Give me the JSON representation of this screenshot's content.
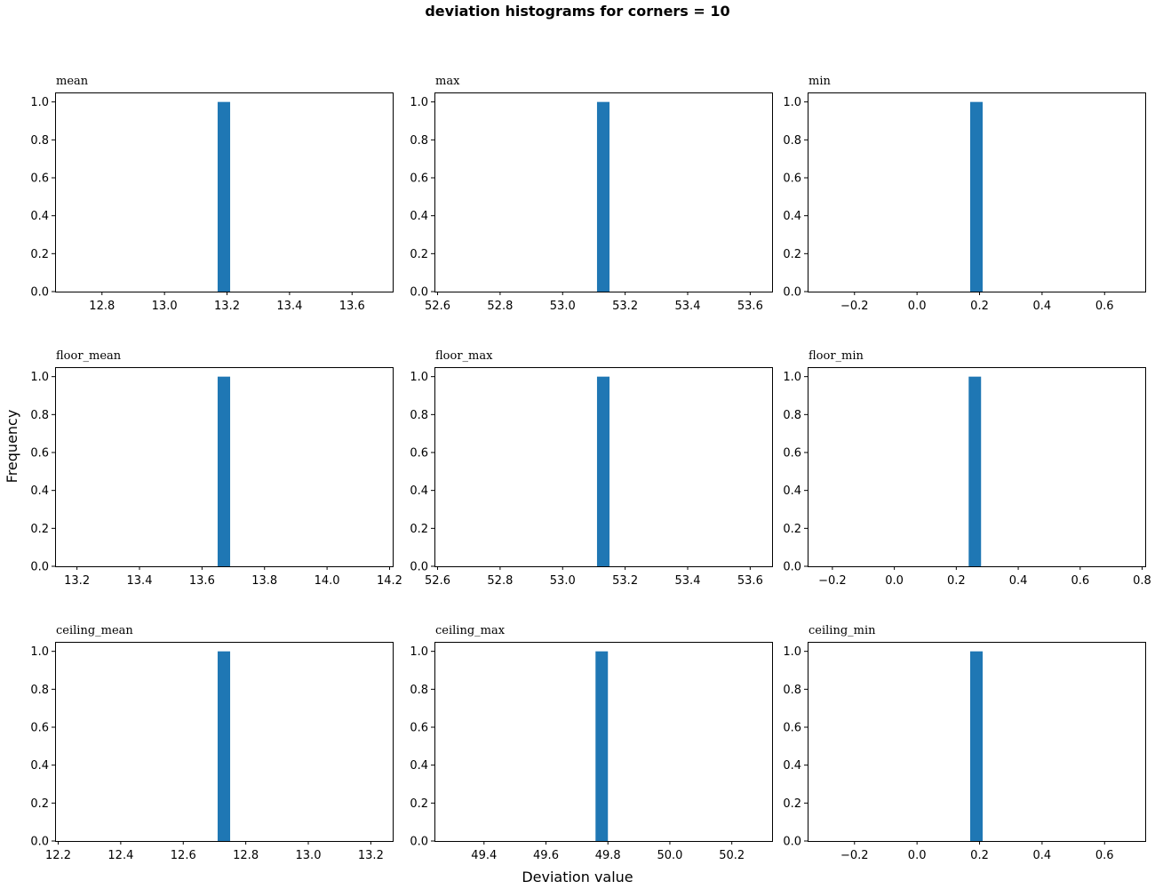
{
  "figure": {
    "suptitle": "deviation histograms for corners = 10",
    "xlabel": "Deviation value",
    "ylabel": "Frequency",
    "bar_color": "#1f77b4"
  },
  "chart_data": [
    {
      "type": "bar",
      "title": "mean",
      "xlim": [
        12.65,
        13.73
      ],
      "ylim": [
        0,
        1.05
      ],
      "xticks": [
        12.8,
        13.0,
        13.2,
        13.4,
        13.6
      ],
      "xtick_labels": [
        "12.8",
        "13.0",
        "13.2",
        "13.4",
        "13.6"
      ],
      "yticks": [
        0,
        0.2,
        0.4,
        0.6,
        0.8,
        1.0
      ],
      "ytick_labels": [
        "0.0",
        "0.2",
        "0.4",
        "0.6",
        "0.8",
        "1.0"
      ],
      "bins": [
        {
          "x0": 13.17,
          "x1": 13.21,
          "count": 1
        }
      ]
    },
    {
      "type": "bar",
      "title": "max",
      "xlim": [
        52.59,
        53.67
      ],
      "ylim": [
        0,
        1.05
      ],
      "xticks": [
        52.6,
        52.8,
        53.0,
        53.2,
        53.4,
        53.6
      ],
      "xtick_labels": [
        "52.6",
        "52.8",
        "53.0",
        "53.2",
        "53.4",
        "53.6"
      ],
      "yticks": [
        0,
        0.2,
        0.4,
        0.6,
        0.8,
        1.0
      ],
      "ytick_labels": [
        "0.0",
        "0.2",
        "0.4",
        "0.6",
        "0.8",
        "1.0"
      ],
      "bins": [
        {
          "x0": 53.11,
          "x1": 53.15,
          "count": 1
        }
      ]
    },
    {
      "type": "bar",
      "title": "min",
      "xlim": [
        -0.35,
        0.73
      ],
      "ylim": [
        0,
        1.05
      ],
      "xticks": [
        -0.2,
        0.0,
        0.2,
        0.4,
        0.6
      ],
      "xtick_labels": [
        "−0.2",
        "0.0",
        "0.2",
        "0.4",
        "0.6"
      ],
      "yticks": [
        0,
        0.2,
        0.4,
        0.6,
        0.8,
        1.0
      ],
      "ytick_labels": [
        "0.0",
        "0.2",
        "0.4",
        "0.6",
        "0.8",
        "1.0"
      ],
      "bins": [
        {
          "x0": 0.17,
          "x1": 0.21,
          "count": 1
        }
      ]
    },
    {
      "type": "bar",
      "title": "floor_mean",
      "xlim": [
        13.13,
        14.21
      ],
      "ylim": [
        0,
        1.05
      ],
      "xticks": [
        13.2,
        13.4,
        13.6,
        13.8,
        14.0,
        14.2
      ],
      "xtick_labels": [
        "13.2",
        "13.4",
        "13.6",
        "13.8",
        "14.0",
        "14.2"
      ],
      "yticks": [
        0,
        0.2,
        0.4,
        0.6,
        0.8,
        1.0
      ],
      "ytick_labels": [
        "0.0",
        "0.2",
        "0.4",
        "0.6",
        "0.8",
        "1.0"
      ],
      "bins": [
        {
          "x0": 13.65,
          "x1": 13.69,
          "count": 1
        }
      ]
    },
    {
      "type": "bar",
      "title": "floor_max",
      "xlim": [
        52.59,
        53.67
      ],
      "ylim": [
        0,
        1.05
      ],
      "xticks": [
        52.6,
        52.8,
        53.0,
        53.2,
        53.4,
        53.6
      ],
      "xtick_labels": [
        "52.6",
        "52.8",
        "53.0",
        "53.2",
        "53.4",
        "53.6"
      ],
      "yticks": [
        0,
        0.2,
        0.4,
        0.6,
        0.8,
        1.0
      ],
      "ytick_labels": [
        "0.0",
        "0.2",
        "0.4",
        "0.6",
        "0.8",
        "1.0"
      ],
      "bins": [
        {
          "x0": 53.11,
          "x1": 53.15,
          "count": 1
        }
      ]
    },
    {
      "type": "bar",
      "title": "floor_min",
      "xlim": [
        -0.28,
        0.81
      ],
      "ylim": [
        0,
        1.05
      ],
      "xticks": [
        -0.2,
        0.0,
        0.2,
        0.4,
        0.6,
        0.8
      ],
      "xtick_labels": [
        "−0.2",
        "0.0",
        "0.2",
        "0.4",
        "0.6",
        "0.8"
      ],
      "yticks": [
        0,
        0.2,
        0.4,
        0.6,
        0.8,
        1.0
      ],
      "ytick_labels": [
        "0.0",
        "0.2",
        "0.4",
        "0.6",
        "0.8",
        "1.0"
      ],
      "bins": [
        {
          "x0": 0.24,
          "x1": 0.28,
          "count": 1
        }
      ]
    },
    {
      "type": "bar",
      "title": "ceiling_mean",
      "xlim": [
        12.19,
        13.27
      ],
      "ylim": [
        0,
        1.05
      ],
      "xticks": [
        12.2,
        12.4,
        12.6,
        12.8,
        13.0,
        13.2
      ],
      "xtick_labels": [
        "12.2",
        "12.4",
        "12.6",
        "12.8",
        "13.0",
        "13.2"
      ],
      "yticks": [
        0,
        0.2,
        0.4,
        0.6,
        0.8,
        1.0
      ],
      "ytick_labels": [
        "0.0",
        "0.2",
        "0.4",
        "0.6",
        "0.8",
        "1.0"
      ],
      "bins": [
        {
          "x0": 12.71,
          "x1": 12.75,
          "count": 1
        }
      ]
    },
    {
      "type": "bar",
      "title": "ceiling_max",
      "xlim": [
        49.24,
        50.33
      ],
      "ylim": [
        0,
        1.05
      ],
      "xticks": [
        49.4,
        49.6,
        49.8,
        50.0,
        50.2
      ],
      "xtick_labels": [
        "49.4",
        "49.6",
        "49.8",
        "50.0",
        "50.2"
      ],
      "yticks": [
        0,
        0.2,
        0.4,
        0.6,
        0.8,
        1.0
      ],
      "ytick_labels": [
        "0.0",
        "0.2",
        "0.4",
        "0.6",
        "0.8",
        "1.0"
      ],
      "bins": [
        {
          "x0": 49.76,
          "x1": 49.8,
          "count": 1
        }
      ]
    },
    {
      "type": "bar",
      "title": "ceiling_min",
      "xlim": [
        -0.35,
        0.73
      ],
      "ylim": [
        0,
        1.05
      ],
      "xticks": [
        -0.2,
        0.0,
        0.2,
        0.4,
        0.6
      ],
      "xtick_labels": [
        "−0.2",
        "0.0",
        "0.2",
        "0.4",
        "0.6"
      ],
      "yticks": [
        0,
        0.2,
        0.4,
        0.6,
        0.8,
        1.0
      ],
      "ytick_labels": [
        "0.0",
        "0.2",
        "0.4",
        "0.6",
        "0.8",
        "1.0"
      ],
      "bins": [
        {
          "x0": 0.17,
          "x1": 0.21,
          "count": 1
        }
      ]
    }
  ]
}
